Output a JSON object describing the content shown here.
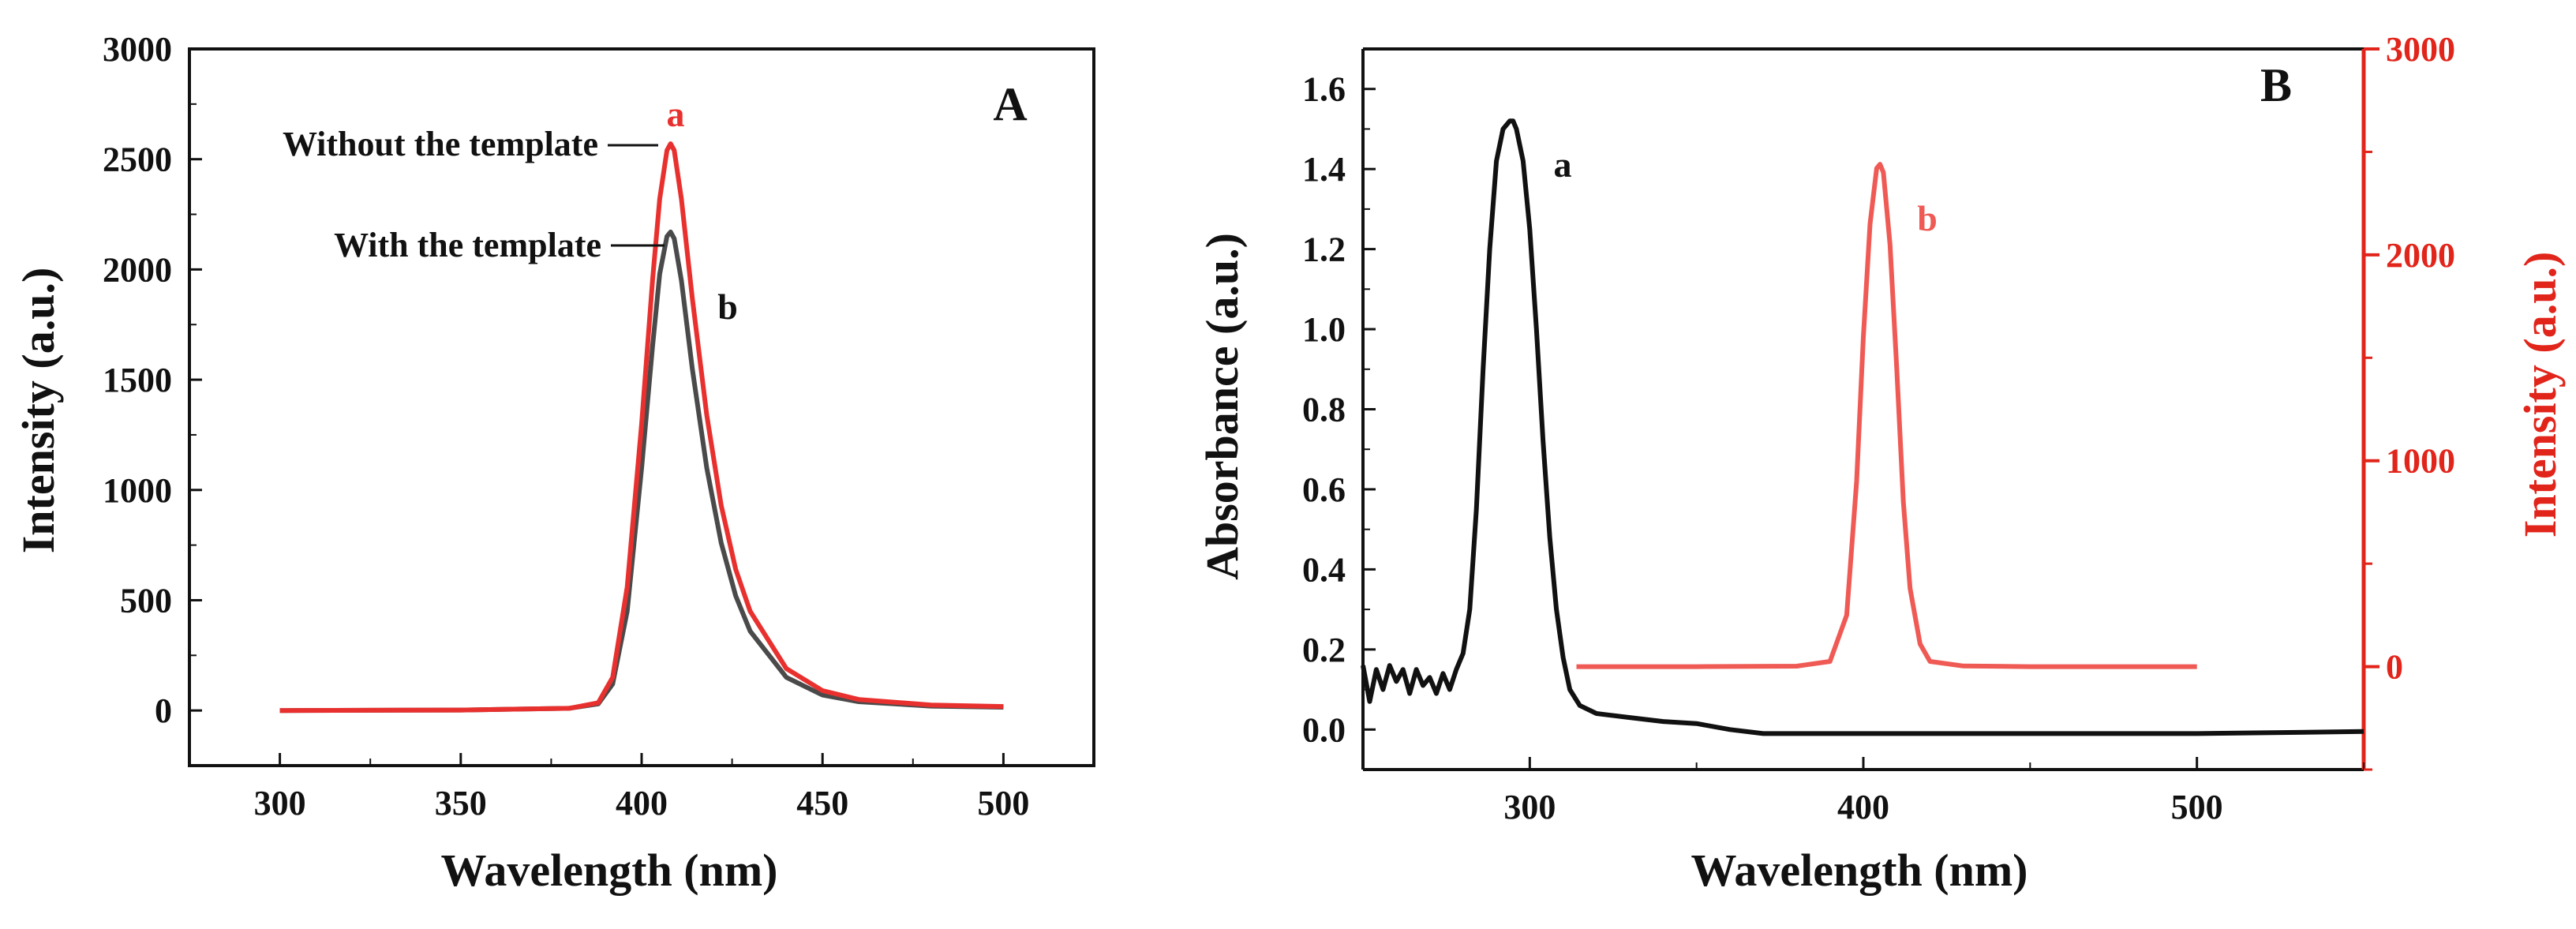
{
  "colors": {
    "black": "#111111",
    "dark_gray": "#4a4a4a",
    "red": "#e8312f",
    "red_light": "#ef5a55",
    "red_axis": "#e1251b"
  },
  "chart_data": [
    {
      "panel": "A",
      "type": "line",
      "title": "",
      "panel_label": "A",
      "xlabel": "Wavelength (nm)",
      "ylabel": "Intensity (a.u.)",
      "xlim": [
        275,
        525
      ],
      "ylim": [
        -250,
        3000
      ],
      "xticks": [
        300,
        350,
        400,
        450,
        500
      ],
      "yticks": [
        0,
        500,
        1000,
        1500,
        2000,
        2500,
        3000
      ],
      "grid": false,
      "series": [
        {
          "name": "b",
          "label": "b",
          "annotation": "With the template",
          "color": "#4a4a4a",
          "x": [
            300,
            350,
            380,
            388,
            392,
            396,
            400,
            403,
            405,
            407,
            408,
            409,
            411,
            414,
            418,
            422,
            426,
            430,
            440,
            450,
            460,
            480,
            500
          ],
          "y": [
            0,
            2,
            10,
            30,
            120,
            450,
            1100,
            1650,
            1980,
            2150,
            2170,
            2140,
            1950,
            1550,
            1100,
            760,
            520,
            360,
            150,
            70,
            40,
            20,
            15
          ]
        },
        {
          "name": "a",
          "label": "a",
          "annotation": "Without the template",
          "color": "#e8312f",
          "x": [
            300,
            350,
            380,
            388,
            392,
            396,
            400,
            403,
            405,
            407,
            408,
            409,
            411,
            414,
            418,
            422,
            426,
            430,
            440,
            450,
            460,
            480,
            500
          ],
          "y": [
            0,
            2,
            10,
            35,
            150,
            560,
            1300,
            1950,
            2320,
            2540,
            2570,
            2540,
            2320,
            1870,
            1340,
            930,
            640,
            450,
            190,
            90,
            50,
            25,
            18
          ]
        }
      ]
    },
    {
      "panel": "B",
      "type": "line",
      "title": "",
      "panel_label": "B",
      "xlabel": "Wavelength (nm)",
      "ylabel_left": "Absorbance (a.u.)",
      "ylabel_right": "Intensity (a.u.)",
      "xlim": [
        250,
        550
      ],
      "ylim_left": [
        -0.1,
        1.7
      ],
      "ylim_right": [
        -500,
        3000
      ],
      "xticks": [
        300,
        400,
        500
      ],
      "yticks_left": [
        "0.0",
        "0.2",
        "0.4",
        "0.6",
        "0.8",
        "1.0",
        "1.2",
        "1.4",
        "1.6"
      ],
      "yticks_right": [
        0,
        1000,
        2000,
        3000
      ],
      "grid": false,
      "series": [
        {
          "name": "a",
          "label": "a",
          "axis": "left",
          "color": "#111111",
          "x": [
            250,
            252,
            254,
            256,
            258,
            260,
            262,
            264,
            266,
            268,
            270,
            272,
            274,
            276,
            278,
            280,
            282,
            284,
            286,
            288,
            290,
            292,
            294,
            295,
            296,
            298,
            300,
            302,
            304,
            306,
            308,
            310,
            312,
            315,
            320,
            330,
            340,
            350,
            360,
            370,
            380,
            400,
            450,
            500,
            550
          ],
          "y": [
            0.16,
            0.07,
            0.15,
            0.1,
            0.16,
            0.12,
            0.15,
            0.09,
            0.15,
            0.11,
            0.13,
            0.09,
            0.14,
            0.1,
            0.15,
            0.19,
            0.3,
            0.55,
            0.9,
            1.2,
            1.42,
            1.5,
            1.52,
            1.52,
            1.5,
            1.42,
            1.25,
            1.0,
            0.72,
            0.48,
            0.3,
            0.18,
            0.1,
            0.06,
            0.04,
            0.03,
            0.02,
            0.015,
            0.0,
            -0.01,
            -0.01,
            -0.01,
            -0.01,
            -0.01,
            -0.005
          ]
        },
        {
          "name": "b",
          "label": "b",
          "axis": "right",
          "color": "#ef5a55",
          "x": [
            314,
            350,
            380,
            390,
            395,
            398,
            400,
            402,
            404,
            405,
            406,
            408,
            410,
            412,
            414,
            417,
            420,
            430,
            450,
            500
          ],
          "y": [
            0,
            0,
            2,
            25,
            250,
            900,
            1600,
            2150,
            2420,
            2440,
            2400,
            2050,
            1450,
            800,
            380,
            110,
            25,
            3,
            0,
            0
          ]
        }
      ]
    }
  ]
}
